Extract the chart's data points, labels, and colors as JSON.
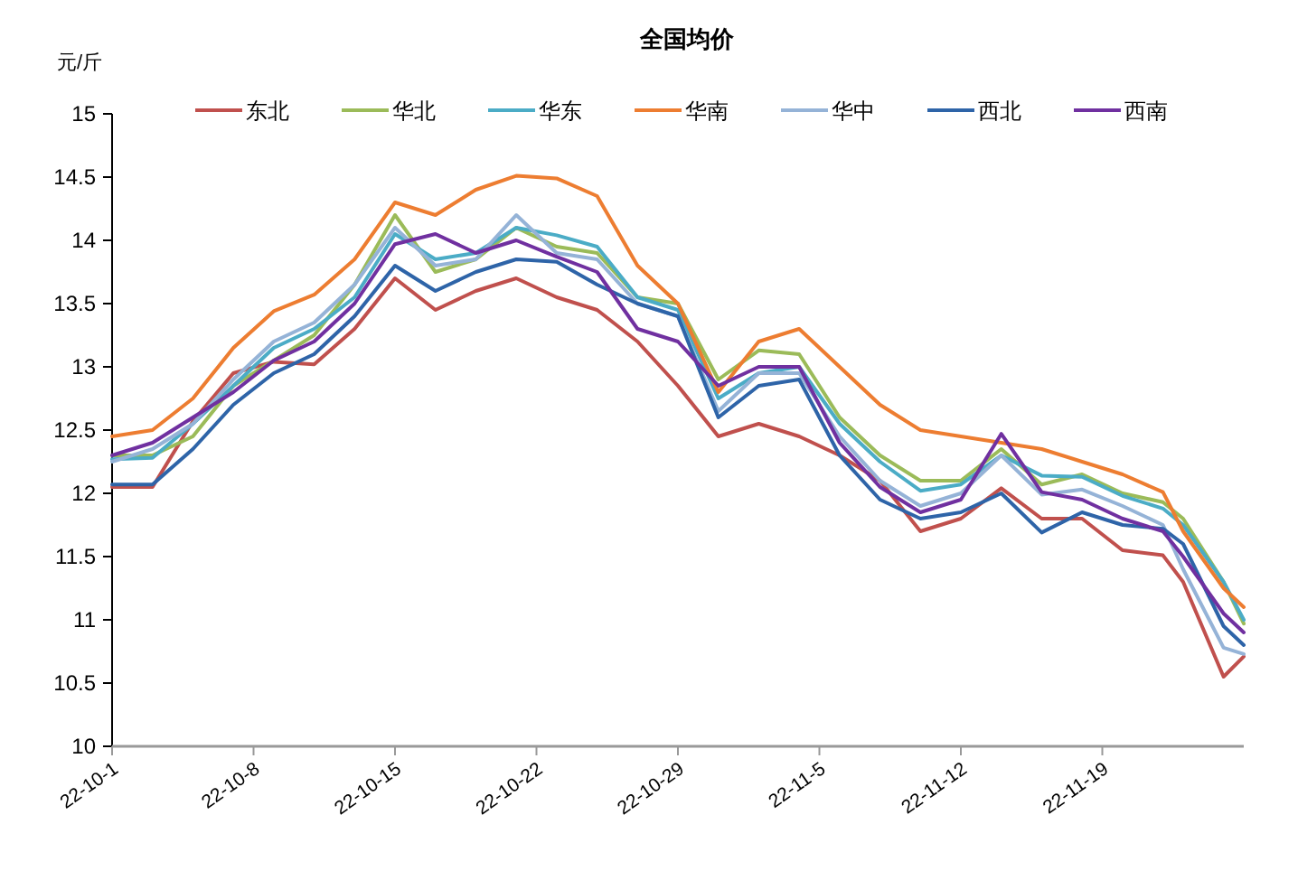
{
  "chart_data": {
    "type": "line",
    "title": "全国均价",
    "ylabel": "元/斤",
    "x": [
      "--10-01",
      "--10-03",
      "--10-05",
      "--10-07",
      "--10-09",
      "--10-11",
      "--10-13",
      "--10-15",
      "--10-17",
      "--10-19",
      "--10-21",
      "--10-23",
      "--10-25",
      "--10-27",
      "--10-29",
      "--10-31",
      "--11-02",
      "--11-04",
      "--11-06",
      "--11-08",
      "--11-10",
      "--11-12",
      "--11-14",
      "--11-16",
      "--11-18",
      "--11-20",
      "--11-22",
      "--11-23",
      "--11-25",
      "--11-26"
    ],
    "series": [
      {
        "name": "东北",
        "color": "#c0504d",
        "values": [
          12.05,
          12.05,
          12.57,
          12.95,
          13.04,
          13.02,
          13.3,
          13.7,
          13.45,
          13.6,
          13.7,
          13.55,
          13.45,
          13.2,
          12.85,
          12.45,
          12.55,
          12.45,
          12.3,
          12.1,
          11.7,
          11.8,
          12.04,
          11.8,
          11.8,
          11.55,
          11.51,
          11.3,
          10.55,
          10.71
        ]
      },
      {
        "name": "华北",
        "color": "#9bbb59",
        "values": [
          12.3,
          12.3,
          12.45,
          12.85,
          13.05,
          13.25,
          13.65,
          14.2,
          13.75,
          13.85,
          14.1,
          13.95,
          13.9,
          13.55,
          13.5,
          12.9,
          13.13,
          13.1,
          12.6,
          12.3,
          12.1,
          12.1,
          12.35,
          12.07,
          12.15,
          12.0,
          11.93,
          11.8,
          11.3,
          10.97
        ]
      },
      {
        "name": "华东",
        "color": "#4bacc6",
        "values": [
          12.27,
          12.28,
          12.55,
          12.85,
          13.15,
          13.3,
          13.55,
          14.05,
          13.85,
          13.9,
          14.1,
          14.04,
          13.95,
          13.55,
          13.45,
          12.75,
          12.95,
          13.0,
          12.55,
          12.25,
          12.02,
          12.07,
          12.3,
          12.14,
          12.13,
          11.98,
          11.88,
          11.75,
          11.3,
          11.0
        ]
      },
      {
        "name": "华南",
        "color": "#ed7d31",
        "values": [
          12.45,
          12.5,
          12.75,
          13.15,
          13.44,
          13.57,
          13.85,
          14.3,
          14.2,
          14.4,
          14.51,
          14.49,
          14.35,
          13.8,
          13.5,
          12.8,
          13.2,
          13.3,
          13.0,
          12.7,
          12.5,
          12.45,
          12.4,
          12.35,
          12.25,
          12.15,
          12.01,
          11.7,
          11.25,
          11.1
        ]
      },
      {
        "name": "华中",
        "color": "#95b3d7",
        "values": [
          12.25,
          12.35,
          12.55,
          12.9,
          13.2,
          13.35,
          13.65,
          14.1,
          13.8,
          13.85,
          14.2,
          13.9,
          13.85,
          13.5,
          13.4,
          12.65,
          12.95,
          12.95,
          12.45,
          12.1,
          11.9,
          12.0,
          12.3,
          11.99,
          12.03,
          11.9,
          11.75,
          11.4,
          10.78,
          10.73
        ]
      },
      {
        "name": "西北",
        "color": "#2e64a8",
        "values": [
          12.07,
          12.07,
          12.35,
          12.7,
          12.95,
          13.1,
          13.4,
          13.8,
          13.6,
          13.75,
          13.85,
          13.83,
          13.65,
          13.5,
          13.4,
          12.6,
          12.85,
          12.9,
          12.3,
          11.95,
          11.8,
          11.85,
          12.0,
          11.69,
          11.85,
          11.75,
          11.72,
          11.6,
          10.95,
          10.8
        ]
      },
      {
        "name": "西南",
        "color": "#7030a0",
        "values": [
          12.3,
          12.4,
          12.6,
          12.8,
          13.05,
          13.2,
          13.5,
          13.97,
          14.05,
          13.9,
          14.0,
          13.87,
          13.75,
          13.3,
          13.2,
          12.85,
          13.0,
          13.0,
          12.4,
          12.05,
          11.85,
          11.95,
          12.47,
          12.01,
          11.95,
          11.8,
          11.7,
          11.5,
          11.05,
          10.9
        ]
      }
    ],
    "xlim": [
      "--10-01",
      "--11-26"
    ],
    "xticks": [
      {
        "value": "--10-01",
        "label": "22-10-1"
      },
      {
        "value": "--10-08",
        "label": "22-10-8"
      },
      {
        "value": "--10-15",
        "label": "22-10-15"
      },
      {
        "value": "--10-22",
        "label": "22-10-22"
      },
      {
        "value": "--10-29",
        "label": "22-10-29"
      },
      {
        "value": "--11-05",
        "label": "22-11-5"
      },
      {
        "value": "--11-12",
        "label": "22-11-12"
      },
      {
        "value": "--11-19",
        "label": "22-11-19"
      }
    ],
    "ylim": [
      10,
      15
    ],
    "yticks": [
      10,
      10.5,
      11,
      11.5,
      12,
      12.5,
      13,
      13.5,
      14,
      14.5,
      15
    ],
    "legend": "top",
    "grid": false,
    "marker": "none",
    "line_style": "solid"
  }
}
